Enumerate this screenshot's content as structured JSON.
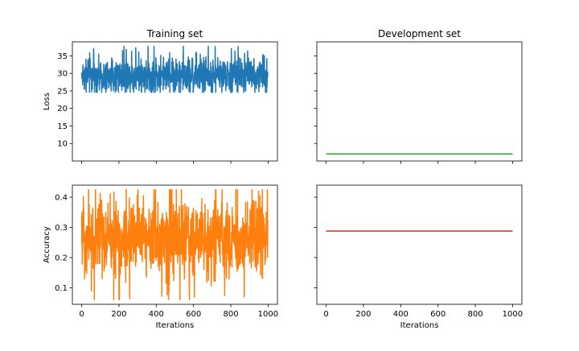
{
  "chart_data": [
    {
      "panel": "train-loss",
      "type": "line",
      "title": "Training set",
      "ylabel": "Loss",
      "xlabel": "",
      "xlim": [
        -50,
        1050
      ],
      "ylim": [
        5,
        39
      ],
      "xticks": [
        0,
        200,
        400,
        600,
        800,
        1000
      ],
      "yticks": [
        10,
        15,
        20,
        25,
        30,
        35
      ],
      "series": [
        {
          "color": "#1f77b4",
          "n_points": 1000,
          "base": 29.5,
          "spread": 2.2,
          "min": 24.6,
          "max": 37.7
        }
      ]
    },
    {
      "panel": "dev-loss",
      "type": "line",
      "title": "Development set",
      "ylabel": "",
      "xlabel": "",
      "xlim": [
        -50,
        1050
      ],
      "ylim": [
        5,
        39
      ],
      "xticks": [
        0,
        200,
        400,
        600,
        800,
        1000
      ],
      "yticks": [
        10,
        15,
        20,
        25,
        30,
        35
      ],
      "series": [
        {
          "color": "#2ca02c",
          "x": [
            0,
            1000
          ],
          "y": [
            7.0,
            7.0
          ]
        }
      ]
    },
    {
      "panel": "train-acc",
      "type": "line",
      "title": "",
      "ylabel": "Accuracy",
      "xlabel": "Iterations",
      "xlim": [
        -50,
        1050
      ],
      "ylim": [
        0.045,
        0.44
      ],
      "xticks": [
        0,
        200,
        400,
        600,
        800,
        1000
      ],
      "yticks": [
        0.1,
        0.2,
        0.3,
        0.4
      ],
      "series": [
        {
          "color": "#ff7f0e",
          "n_points": 1000,
          "base": 0.265,
          "spread": 0.055,
          "min": 0.06,
          "max": 0.425
        }
      ]
    },
    {
      "panel": "dev-acc",
      "type": "line",
      "title": "",
      "ylabel": "",
      "xlabel": "Iterations",
      "xlim": [
        -50,
        1050
      ],
      "ylim": [
        0.045,
        0.44
      ],
      "xticks": [
        0,
        200,
        400,
        600,
        800,
        1000
      ],
      "yticks": [
        0.1,
        0.2,
        0.3,
        0.4
      ],
      "series": [
        {
          "color": "#d62728",
          "x": [
            0,
            1000
          ],
          "y": [
            0.288,
            0.288
          ]
        }
      ]
    }
  ]
}
